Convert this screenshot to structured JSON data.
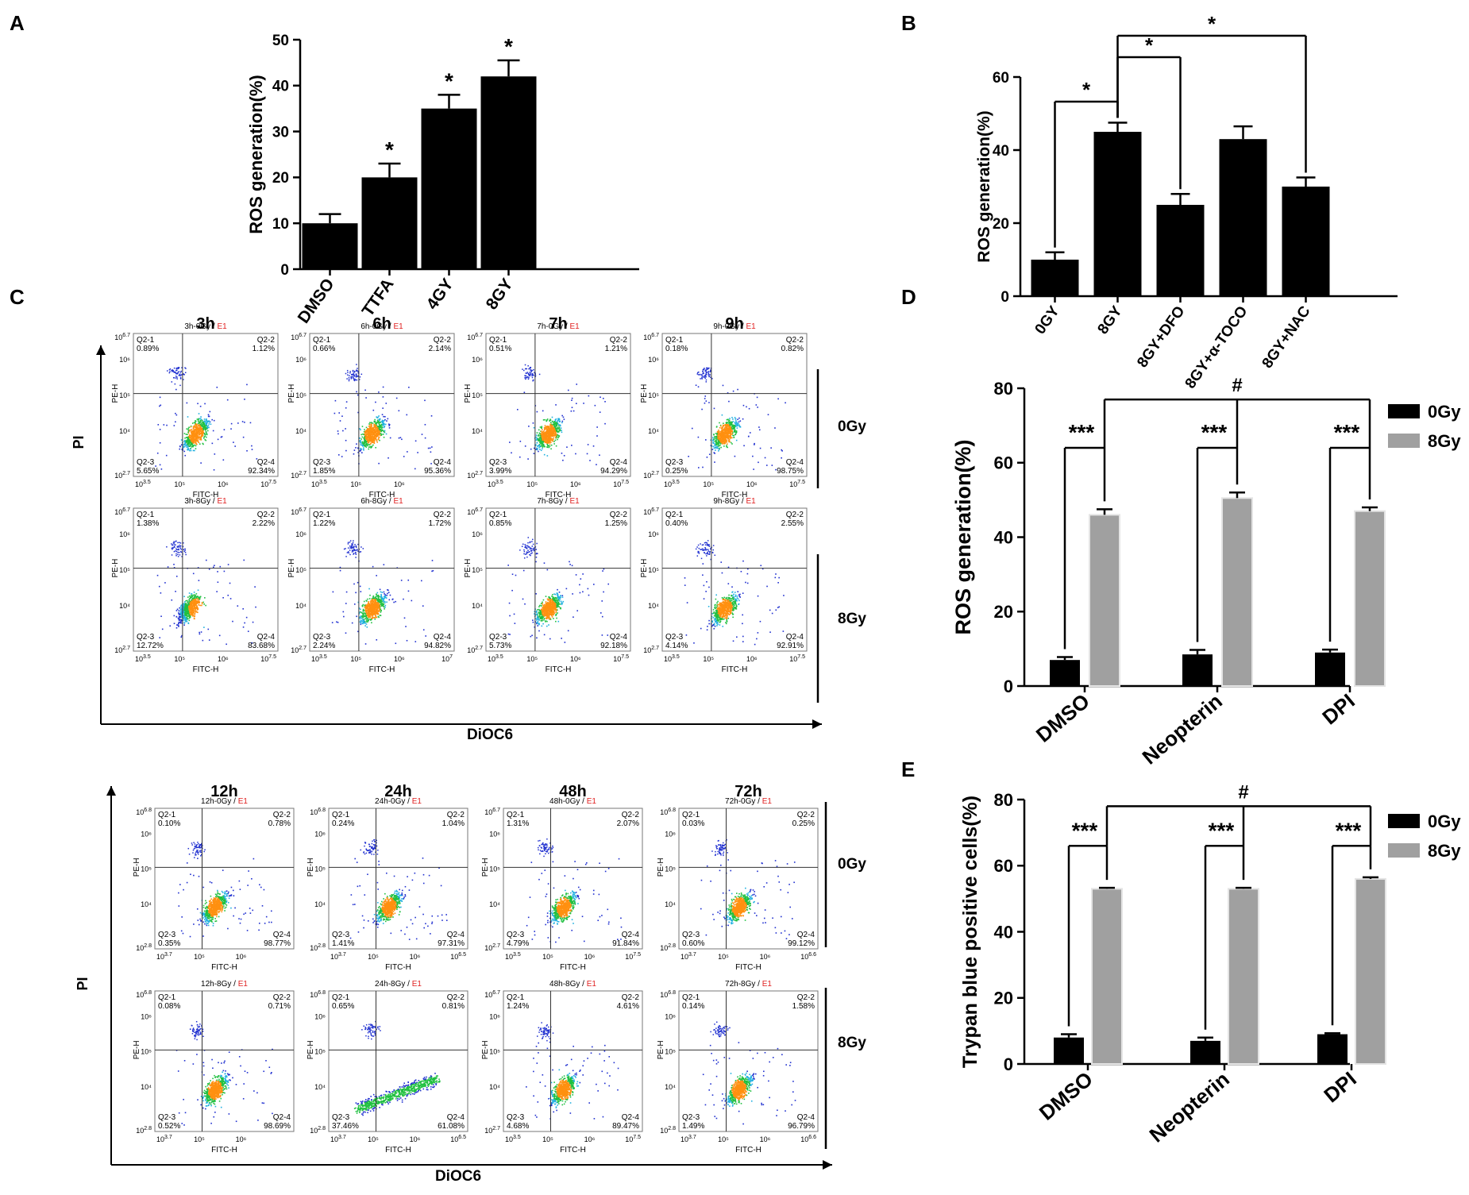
{
  "panel_labels": [
    "A",
    "B",
    "C",
    "D",
    "E"
  ],
  "chart_data": [
    {
      "id": "A",
      "type": "bar",
      "ylabel": "ROS generation(%)",
      "ylim": [
        0,
        50
      ],
      "yticks": [
        0,
        10,
        20,
        30,
        40,
        50
      ],
      "categories": [
        "DMSO",
        "TTFA",
        "4GY",
        "8GY"
      ],
      "values": [
        10,
        20,
        35,
        42
      ],
      "errors": [
        2,
        3,
        3,
        3.5
      ],
      "significance": [
        "",
        "*",
        "*",
        "*"
      ]
    },
    {
      "id": "B",
      "type": "bar",
      "ylabel": "ROS generation(%)",
      "ylim": [
        0,
        60
      ],
      "yticks": [
        0,
        20,
        40,
        60
      ],
      "categories": [
        "0GY",
        "8GY",
        "8GY+DFO",
        "8GY+α-TOCO",
        "8GY+NAC"
      ],
      "values": [
        10,
        45,
        25,
        43,
        30
      ],
      "errors": [
        2,
        2.5,
        3,
        3.5,
        2.5
      ],
      "brackets": [
        {
          "from": 0,
          "to": 1,
          "label": "*"
        },
        {
          "from": 1,
          "to": 2,
          "label": "*"
        },
        {
          "from": 1,
          "to": 4,
          "label": "*"
        }
      ]
    },
    {
      "id": "D",
      "type": "bar",
      "ylabel": "ROS generation(%)",
      "ylim": [
        0,
        80
      ],
      "yticks": [
        0,
        20,
        40,
        60,
        80
      ],
      "categories": [
        "DMSO",
        "Neopterin",
        "DPI"
      ],
      "series": [
        {
          "name": "0Gy",
          "color": "#000000",
          "values": [
            7,
            8.5,
            9
          ],
          "errors": [
            0.8,
            1.2,
            0.8
          ]
        },
        {
          "name": "8Gy",
          "color": "#a0a0a0",
          "values": [
            46,
            50.5,
            47
          ],
          "errors": [
            1.5,
            1.5,
            1
          ]
        }
      ],
      "pair_label": "***",
      "top_label": "#"
    },
    {
      "id": "E",
      "type": "bar",
      "ylabel": "Trypan blue positive cells(%)",
      "ylim": [
        0,
        80
      ],
      "yticks": [
        0,
        20,
        40,
        60,
        80
      ],
      "categories": [
        "DMSO",
        "Neopterin",
        "DPI"
      ],
      "series": [
        {
          "name": "0Gy",
          "color": "#000000",
          "values": [
            8,
            7,
            9
          ],
          "errors": [
            1,
            1,
            0.3
          ]
        },
        {
          "name": "8Gy",
          "color": "#a0a0a0",
          "values": [
            53,
            53,
            56
          ],
          "errors": [
            0.3,
            0.3,
            0.5
          ]
        }
      ],
      "pair_label": "***",
      "top_label": "#"
    }
  ],
  "flow": {
    "groups": [
      {
        "times": [
          "3h",
          "6h",
          "7h",
          "9h"
        ],
        "ylabel": "PI",
        "xlabel": "DiOC6",
        "rows": [
          {
            "dose": "0Gy",
            "plots": [
              {
                "title": "3h-0Gy",
                "gate": "E1",
                "q1": "0.89%",
                "q2": "1.12%",
                "q3": "5.65%",
                "q4": "92.34%",
                "ylo": "2.7",
                "yhi": "6.7",
                "xlo": "3.5",
                "xhi": "7.5",
                "ymid": [
                  "10⁶",
                  "10⁵",
                  "10⁴"
                ],
                "xmid": [
                  "10⁵",
                  "10⁶"
                ]
              },
              {
                "title": "6h-0Gy",
                "gate": "E1",
                "q1": "0.66%",
                "q2": "2.14%",
                "q3": "1.85%",
                "q4": "95.36%",
                "ylo": "2.7",
                "yhi": "6.7",
                "xlo": "3.5",
                "xhi": "",
                "ymid": [
                  "10⁶",
                  "10⁵",
                  "10⁴"
                ],
                "xmid": [
                  "10⁵",
                  "10⁶"
                ]
              },
              {
                "title": "7h-0Gy",
                "gate": "E1",
                "q1": "0.51%",
                "q2": "1.21%",
                "q3": "3.99%",
                "q4": "94.29%",
                "ylo": "2.7",
                "yhi": "6.7",
                "xlo": "3.5",
                "xhi": "7.5",
                "ymid": [
                  "10⁶",
                  "10⁵",
                  "10⁴"
                ],
                "xmid": [
                  "10⁵",
                  "10⁶"
                ]
              },
              {
                "title": "9h-0Gy",
                "gate": "E1",
                "q1": "0.18%",
                "q2": "0.82%",
                "q3": "0.25%",
                "q4": "98.75%",
                "ylo": "2.7",
                "yhi": "6.7",
                "xlo": "3.5",
                "xhi": "7.5",
                "ymid": [
                  "10⁶",
                  "10⁵",
                  "10⁴"
                ],
                "xmid": [
                  "10⁵",
                  "10⁶"
                ]
              }
            ]
          },
          {
            "dose": "8Gy",
            "plots": [
              {
                "title": "3h-8Gy",
                "gate": "E1",
                "q1": "1.38%",
                "q2": "2.22%",
                "q3": "12.72%",
                "q4": "83.68%",
                "ylo": "2.7",
                "yhi": "6.7",
                "xlo": "3.5",
                "xhi": "7.5",
                "ymid": [
                  "10⁶",
                  "10⁵",
                  "10⁴"
                ],
                "xmid": [
                  "10⁵",
                  "10⁶"
                ]
              },
              {
                "title": "6h-8Gy",
                "gate": "E1",
                "q1": "1.22%",
                "q2": "1.72%",
                "q3": "2.24%",
                "q4": "94.82%",
                "ylo": "2.7",
                "yhi": "6.7",
                "xlo": "3.5",
                "xhi": "7",
                "ymid": [
                  "10⁶",
                  "10⁵",
                  "10⁴"
                ],
                "xmid": [
                  "10⁵",
                  "10⁶"
                ]
              },
              {
                "title": "7h-8Gy",
                "gate": "E1",
                "q1": "0.85%",
                "q2": "1.25%",
                "q3": "5.73%",
                "q4": "92.18%",
                "ylo": "2.7",
                "yhi": "6.7",
                "xlo": "3.5",
                "xhi": "7.5",
                "ymid": [
                  "10⁶",
                  "10⁵",
                  "10⁴"
                ],
                "xmid": [
                  "10⁵",
                  "10⁶"
                ]
              },
              {
                "title": "9h-8Gy",
                "gate": "E1",
                "q1": "0.40%",
                "q2": "2.55%",
                "q3": "4.14%",
                "q4": "92.91%",
                "ylo": "2.7",
                "yhi": "6.7",
                "xlo": "3.5",
                "xhi": "7.5",
                "ymid": [
                  "10⁶",
                  "10⁵",
                  "10⁴"
                ],
                "xmid": [
                  "10⁵",
                  "10⁶"
                ]
              }
            ]
          }
        ]
      },
      {
        "times": [
          "12h",
          "24h",
          "48h",
          "72h"
        ],
        "ylabel": "PI",
        "xlabel": "DiOC6",
        "rows": [
          {
            "dose": "0Gy",
            "plots": [
              {
                "title": "12h-0Gy",
                "gate": "E1",
                "q1": "0.10%",
                "q2": "0.78%",
                "q3": "0.35%",
                "q4": "98.77%",
                "ylo": "2.8",
                "yhi": "6.8",
                "xlo": "3.7",
                "xhi": "",
                "ymid": [
                  "10⁶",
                  "10⁵",
                  "10⁴"
                ],
                "xmid": [
                  "10⁵",
                  "10⁶"
                ]
              },
              {
                "title": "24h-0Gy",
                "gate": "E1",
                "q1": "0.24%",
                "q2": "1.04%",
                "q3": "1.41%",
                "q4": "97.31%",
                "ylo": "2.8",
                "yhi": "6.8",
                "xlo": "3.7",
                "xhi": "6.5",
                "ymid": [
                  "10⁶",
                  "10⁵",
                  "10⁴"
                ],
                "xmid": [
                  "10⁵",
                  "10⁶"
                ]
              },
              {
                "title": "48h-0Gy",
                "gate": "E1",
                "q1": "1.31%",
                "q2": "2.07%",
                "q3": "4.79%",
                "q4": "91.84%",
                "ylo": "2.7",
                "yhi": "6.7",
                "xlo": "3.5",
                "xhi": "7.5",
                "ymid": [
                  "10⁶",
                  "10⁵",
                  "10⁴"
                ],
                "xmid": [
                  "10⁵",
                  "10⁶"
                ]
              },
              {
                "title": "72h-0Gy",
                "gate": "E1",
                "q1": "0.03%",
                "q2": "0.25%",
                "q3": "0.60%",
                "q4": "99.12%",
                "ylo": "2.8",
                "yhi": "6.8",
                "xlo": "3.7",
                "xhi": "6.6",
                "ymid": [
                  "10⁶",
                  "10⁵",
                  "10⁴"
                ],
                "xmid": [
                  "10⁵",
                  "10⁶"
                ]
              }
            ]
          },
          {
            "dose": "8Gy",
            "plots": [
              {
                "title": "12h-8Gy",
                "gate": "E1",
                "q1": "0.08%",
                "q2": "0.71%",
                "q3": "0.52%",
                "q4": "98.69%",
                "ylo": "2.8",
                "yhi": "6.8",
                "xlo": "3.7",
                "xhi": "",
                "ymid": [
                  "10⁶",
                  "10⁵",
                  "10⁴"
                ],
                "xmid": [
                  "10⁵",
                  "10⁶"
                ]
              },
              {
                "title": "24h-8Gy",
                "gate": "E1",
                "q1": "0.65%",
                "q2": "0.81%",
                "q3": "37.46%",
                "q4": "61.08%",
                "ylo": "2.8",
                "yhi": "6.8",
                "xlo": "3.7",
                "xhi": "6.5",
                "ymid": [
                  "10⁶",
                  "10⁵",
                  "10⁴"
                ],
                "xmid": [
                  "10⁵",
                  "10⁶"
                ]
              },
              {
                "title": "48h-8Gy",
                "gate": "E1",
                "q1": "1.24%",
                "q2": "4.61%",
                "q3": "4.68%",
                "q4": "89.47%",
                "ylo": "2.7",
                "yhi": "6.7",
                "xlo": "3.5",
                "xhi": "7.5",
                "ymid": [
                  "10⁶",
                  "10⁵",
                  "10⁴"
                ],
                "xmid": [
                  "10⁵",
                  "10⁶"
                ]
              },
              {
                "title": "72h-8Gy",
                "gate": "E1",
                "q1": "0.14%",
                "q2": "1.58%",
                "q3": "1.49%",
                "q4": "96.79%",
                "ylo": "2.8",
                "yhi": "6.8",
                "xlo": "3.7",
                "xhi": "6.6",
                "ymid": [
                  "10⁶",
                  "10⁵",
                  "10⁴"
                ],
                "xmid": [
                  "10⁵",
                  "10⁶"
                ]
              }
            ]
          }
        ]
      }
    ],
    "axis_names": {
      "x": "FITC-H",
      "y": "PE-H",
      "q1": "Q2-1",
      "q2": "Q2-2",
      "q3": "Q2-3",
      "q4": "Q2-4"
    }
  }
}
